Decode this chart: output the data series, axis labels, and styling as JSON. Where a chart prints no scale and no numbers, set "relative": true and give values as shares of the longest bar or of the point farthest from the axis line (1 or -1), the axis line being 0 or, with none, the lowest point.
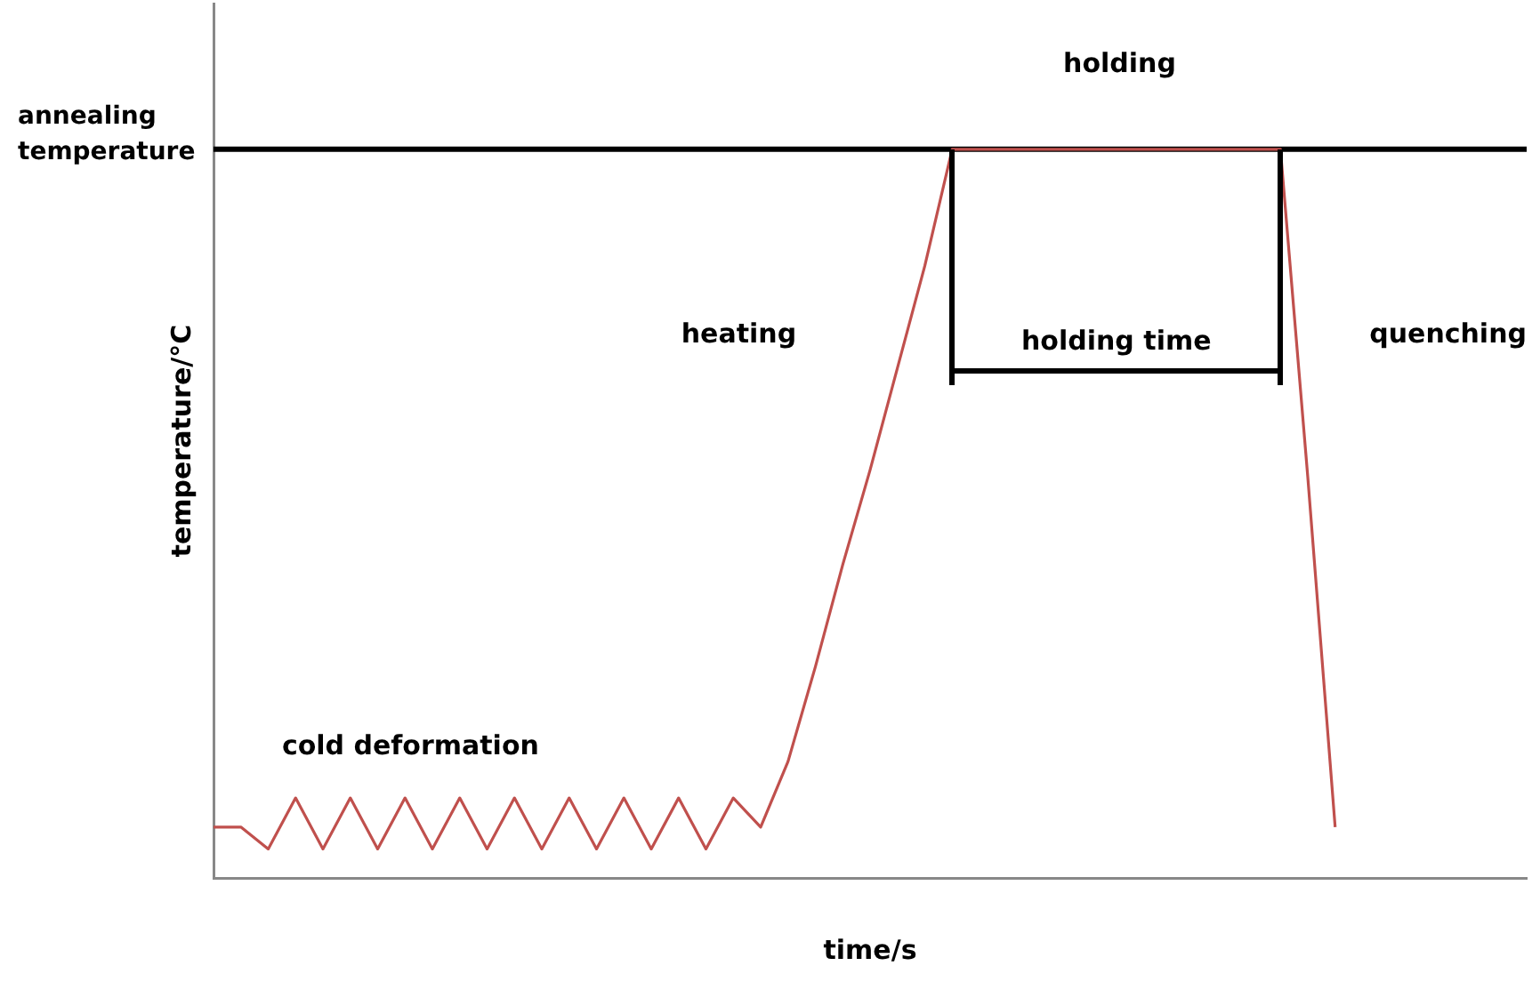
{
  "chart_data": {
    "type": "line",
    "relative": true,
    "xlabel": "time/s",
    "ylabel": "temperature/°C",
    "categories": [
      null,
      null,
      null,
      null,
      null,
      null,
      null,
      null,
      null,
      null,
      null,
      null,
      null,
      null,
      null,
      null,
      null,
      null,
      null,
      null,
      null,
      null,
      null,
      null,
      null,
      null,
      null,
      null,
      null,
      null,
      null,
      null,
      null,
      null,
      null,
      null,
      null,
      null,
      null,
      null,
      null,
      null,
      null,
      null,
      null,
      null,
      null,
      null,
      null
    ],
    "series": [
      {
        "color": "#c0504d",
        "values": [
          0.07,
          0.07,
          0.04,
          0.11,
          0.04,
          0.11,
          0.04,
          0.11,
          0.04,
          0.11,
          0.04,
          0.11,
          0.04,
          0.11,
          0.04,
          0.11,
          0.04,
          0.11,
          0.04,
          0.11,
          0.07,
          0.16,
          0.29,
          0.43,
          0.56,
          0.7,
          0.84,
          1,
          1,
          1,
          1,
          1,
          1,
          1,
          1,
          1,
          1,
          1,
          1,
          1,
          0.55,
          0.07,
          null,
          null,
          null,
          null,
          null,
          null,
          null
        ]
      }
    ],
    "ref_lines": [
      {
        "axis": "y",
        "value": 1,
        "label": "annealing temperature",
        "color": "#000000"
      }
    ],
    "annotations": [
      "holding",
      "heating",
      "quenching",
      "cold deformation",
      "holding time"
    ],
    "grid": false,
    "legend": false,
    "marker": "none",
    "line_style": "solid"
  }
}
